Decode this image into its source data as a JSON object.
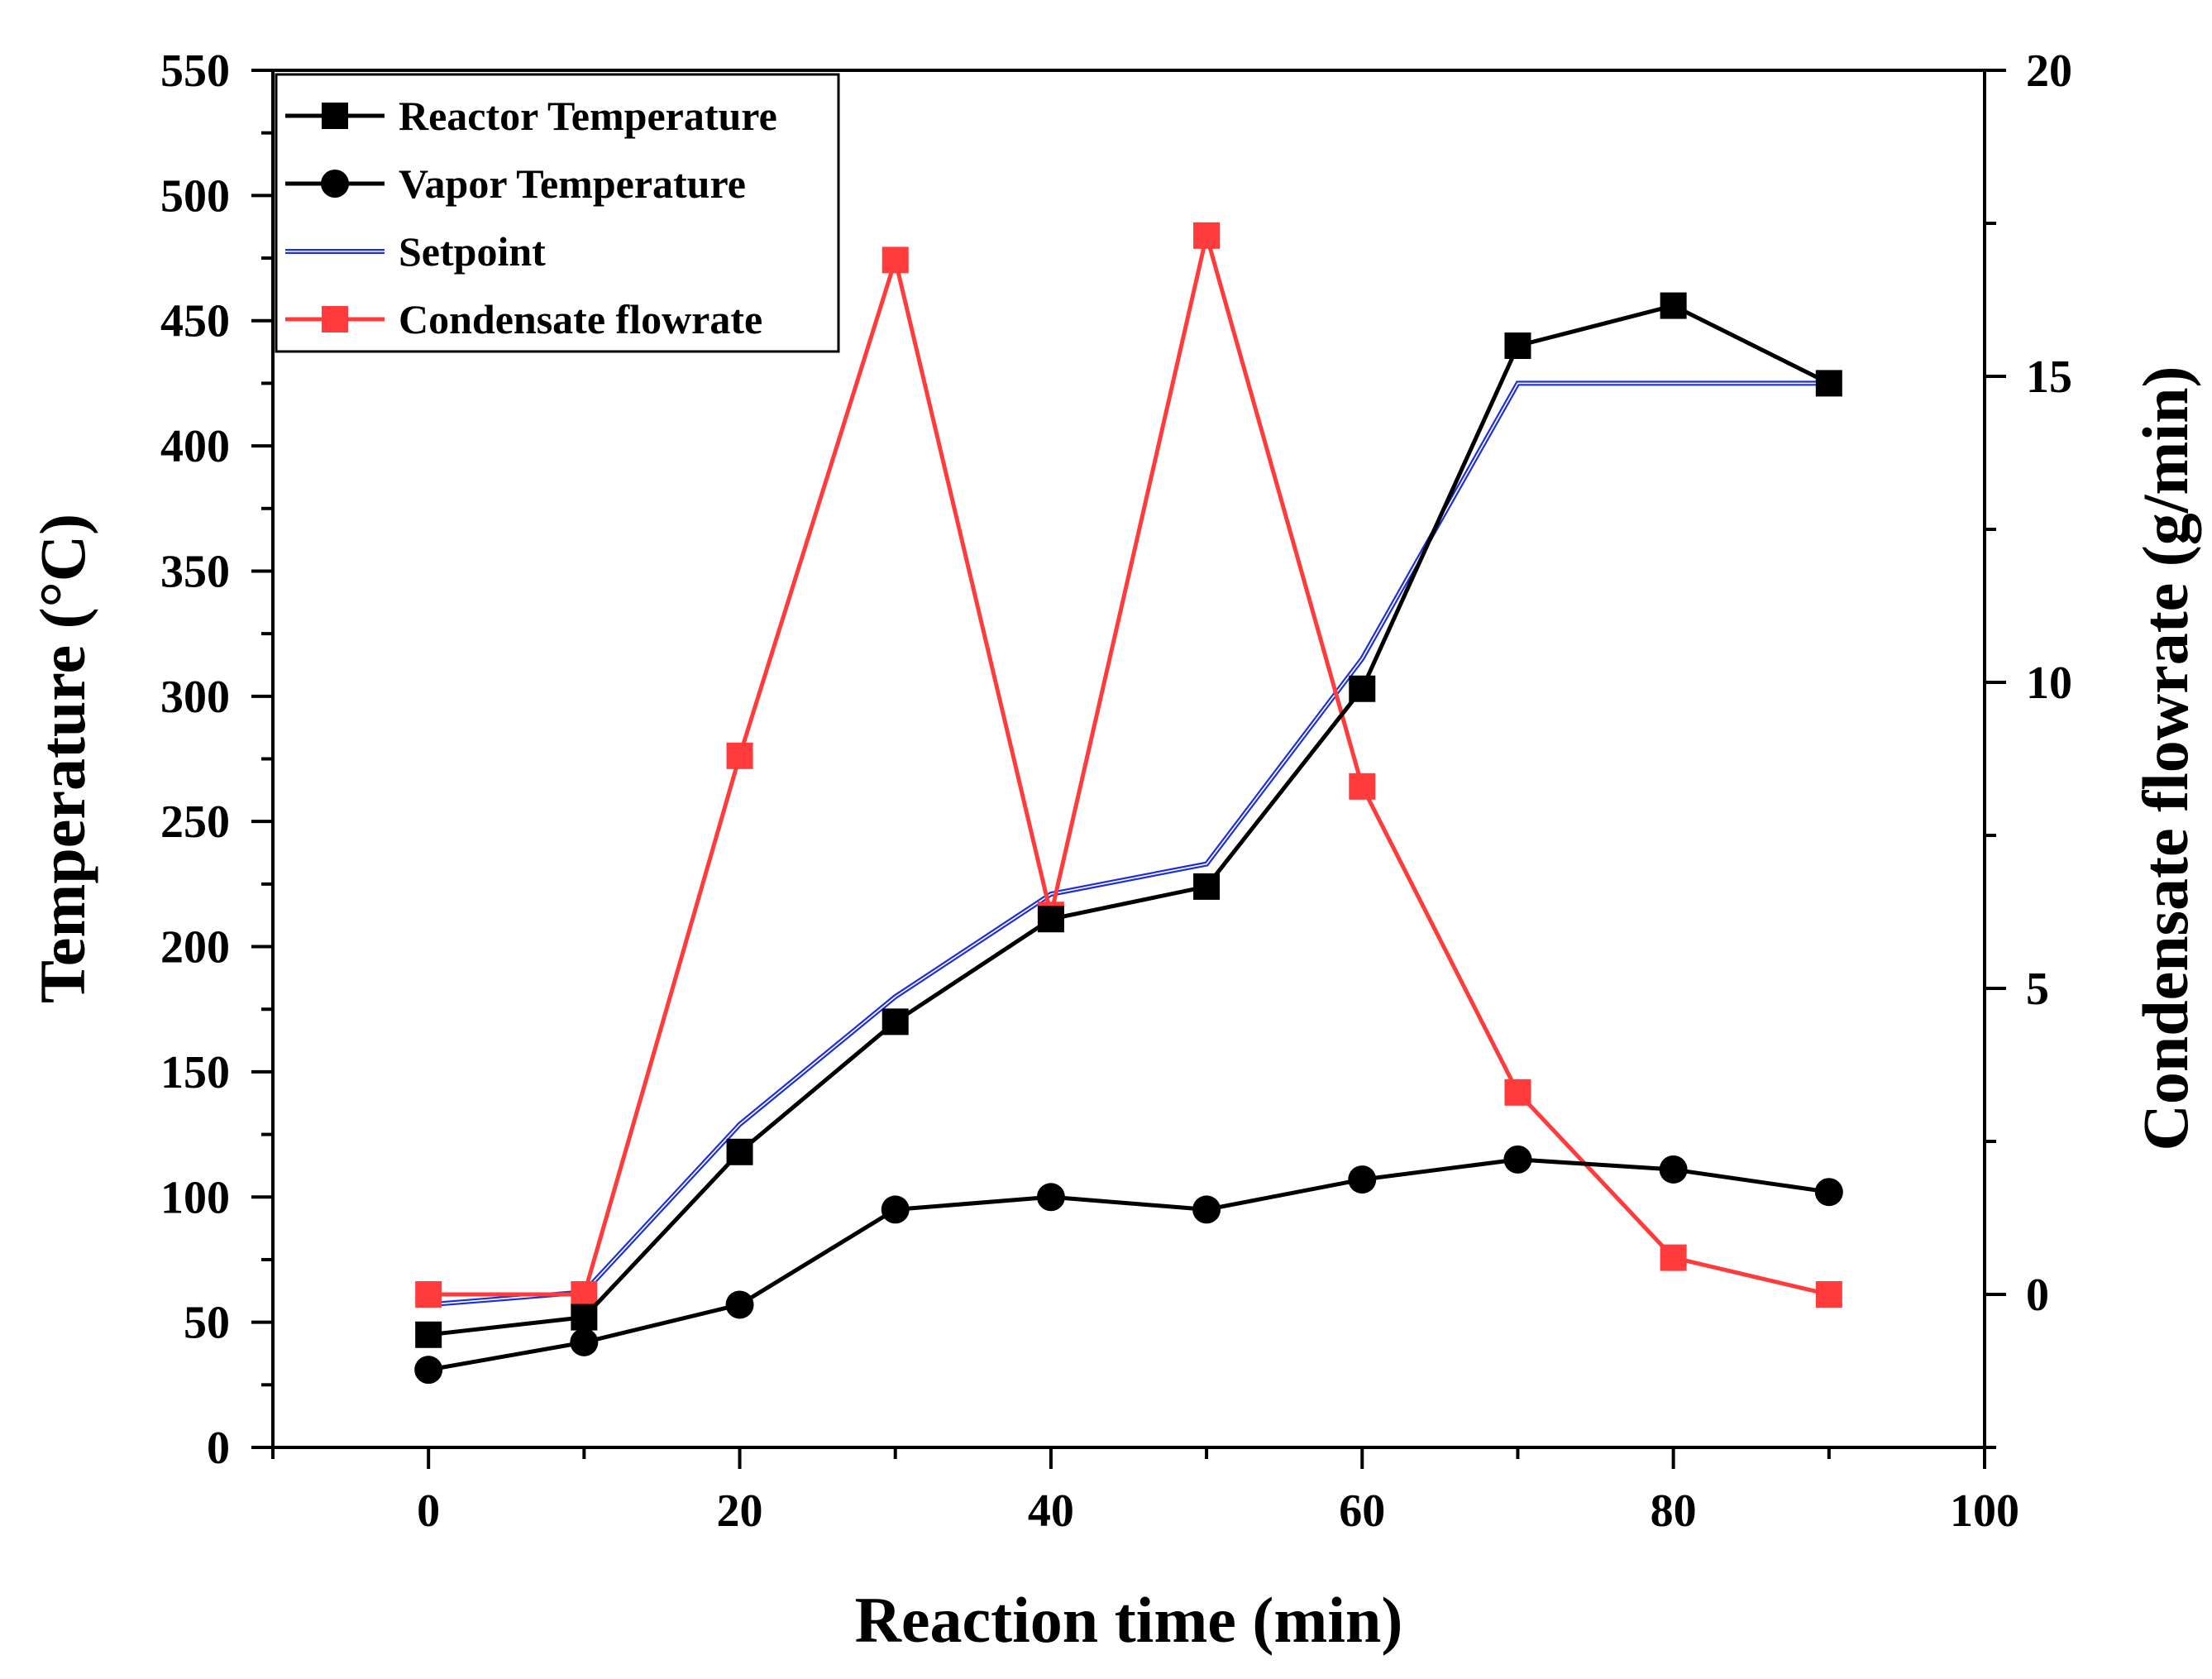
{
  "chart_data": {
    "type": "line",
    "xlabel": "Reaction time (min)",
    "ylabel": "Temperature (°C)",
    "y2label": "Condensate flowrate (g/min)",
    "xlim": [
      -10,
      100
    ],
    "ylim": [
      0,
      550
    ],
    "y2lim": [
      -2.5,
      20
    ],
    "xticks": [
      0,
      20,
      40,
      60,
      80,
      100
    ],
    "yticks": [
      0,
      50,
      100,
      150,
      200,
      250,
      300,
      350,
      400,
      450,
      500,
      550
    ],
    "y2ticks": [
      0,
      5,
      10,
      15,
      20
    ],
    "legend_position": "top-left",
    "series": [
      {
        "name": "Reactor Temperature",
        "axis": "left",
        "color": "#000000",
        "marker": "square",
        "x": [
          0,
          10,
          20,
          30,
          40,
          50,
          60,
          70,
          80,
          90
        ],
        "y": [
          45,
          52,
          118,
          170,
          211,
          224,
          303,
          440,
          456,
          425
        ]
      },
      {
        "name": "Vapor Temperature",
        "axis": "left",
        "color": "#000000",
        "marker": "circle",
        "x": [
          0,
          10,
          20,
          30,
          40,
          50,
          60,
          70,
          80,
          90
        ],
        "y": [
          31,
          42,
          57,
          95,
          100,
          95,
          107,
          115,
          111,
          102
        ]
      },
      {
        "name": "Setpoint",
        "axis": "left",
        "color": "#1f2fd6",
        "marker": "none",
        "x": [
          0,
          10,
          20,
          30,
          40,
          50,
          60,
          70,
          80,
          90
        ],
        "y": [
          57,
          62,
          129,
          180,
          221,
          233,
          315,
          425,
          425,
          425
        ]
      },
      {
        "name": "Condensate flowrate",
        "axis": "right",
        "color": "#ff3b3b",
        "marker": "square",
        "x": [
          0,
          10,
          20,
          30,
          40,
          50,
          60,
          70,
          80,
          90
        ],
        "y": [
          0,
          0,
          8.8,
          16.9,
          6.2,
          17.3,
          8.3,
          3.3,
          0.6,
          0
        ]
      }
    ]
  }
}
